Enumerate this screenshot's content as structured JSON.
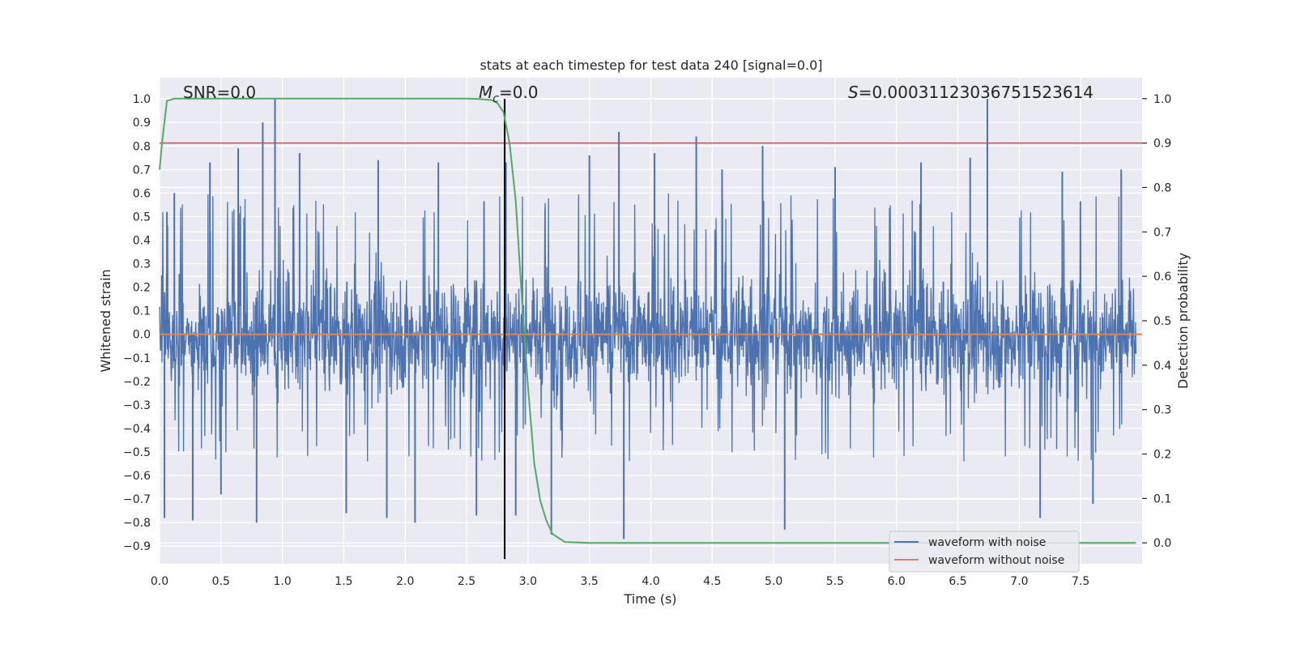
{
  "chart_data": {
    "type": "line",
    "title": "stats at each timestep for test data 240 [signal=0.0]",
    "xlabel": "Time (s)",
    "ylabel": "Whitened strain",
    "y2label": "Detection probability",
    "xlim": [
      0.0,
      8.0
    ],
    "ylim": [
      -0.975,
      1.09
    ],
    "y2lim": [
      -0.047,
      1.047
    ],
    "xticks": [
      0.0,
      0.5,
      1.0,
      1.5,
      2.0,
      2.5,
      3.0,
      3.5,
      4.0,
      4.5,
      5.0,
      5.5,
      6.0,
      6.5,
      7.0,
      7.5
    ],
    "xtick_labels": [
      "0.0",
      "0.5",
      "1.0",
      "1.5",
      "2.0",
      "2.5",
      "3.0",
      "3.5",
      "4.0",
      "4.5",
      "5.0",
      "5.5",
      "6.0",
      "6.5",
      "7.0",
      "7.5"
    ],
    "yticks": [
      1.0,
      0.9,
      0.8,
      0.7,
      0.6,
      0.5,
      0.4,
      0.3,
      0.2,
      0.1,
      0.0,
      -0.1,
      -0.2,
      -0.3,
      -0.4,
      -0.5,
      -0.6,
      -0.7,
      -0.8,
      -0.9
    ],
    "ytick_labels": [
      "1.0",
      "0.9",
      "0.8",
      "0.7",
      "0.6",
      "0.5",
      "0.4",
      "0.3",
      "0.2",
      "0.1",
      "0.0",
      "−0.1",
      "−0.2",
      "−0.3",
      "−0.4",
      "−0.5",
      "−0.6",
      "−0.7",
      "−0.8",
      "−0.9"
    ],
    "y2ticks": [
      1.0,
      0.9,
      0.8,
      0.7,
      0.6,
      0.5,
      0.4,
      0.3,
      0.2,
      0.1,
      0.0
    ],
    "y2tick_labels": [
      "1.0",
      "0.9",
      "0.8",
      "0.7",
      "0.6",
      "0.5",
      "0.4",
      "0.3",
      "0.2",
      "0.1",
      "0.0"
    ],
    "grid": true,
    "legend_position": "bottom-right",
    "annotations": [
      {
        "id": "snr",
        "text": "SNR=0.0"
      },
      {
        "id": "mc",
        "text_symbol": "M",
        "text_sub": "c",
        "text_rest": "=0.0"
      },
      {
        "id": "s",
        "text_symbol": "S",
        "text_rest": "=0.0003112303675152361​4"
      }
    ],
    "series": [
      {
        "name": "waveform with noise",
        "color": "#4c72b0",
        "axis": "left",
        "envelope_typical": [
          -0.45,
          0.5
        ],
        "spikes": [
          {
            "x": 0.04,
            "y": -0.78
          },
          {
            "x": 0.06,
            "y": 0.52
          },
          {
            "x": 0.12,
            "y": 0.6
          },
          {
            "x": 0.27,
            "y": -0.79
          },
          {
            "x": 0.41,
            "y": 0.73
          },
          {
            "x": 0.5,
            "y": -0.68
          },
          {
            "x": 0.64,
            "y": 0.79
          },
          {
            "x": 0.79,
            "y": -0.8
          },
          {
            "x": 0.84,
            "y": 0.9
          },
          {
            "x": 0.94,
            "y": 1.0
          },
          {
            "x": 1.14,
            "y": 0.77
          },
          {
            "x": 1.52,
            "y": -0.76
          },
          {
            "x": 1.78,
            "y": 0.74
          },
          {
            "x": 1.85,
            "y": -0.78
          },
          {
            "x": 2.08,
            "y": -0.8
          },
          {
            "x": 2.27,
            "y": 0.73
          },
          {
            "x": 2.58,
            "y": -0.77
          },
          {
            "x": 2.82,
            "y": 0.73
          },
          {
            "x": 2.9,
            "y": -0.77
          },
          {
            "x": 3.19,
            "y": -0.85
          },
          {
            "x": 3.5,
            "y": 0.76
          },
          {
            "x": 3.74,
            "y": 0.86
          },
          {
            "x": 3.78,
            "y": -0.87
          },
          {
            "x": 4.03,
            "y": 0.77
          },
          {
            "x": 4.37,
            "y": 0.84
          },
          {
            "x": 4.58,
            "y": 0.7
          },
          {
            "x": 4.91,
            "y": 0.8
          },
          {
            "x": 5.09,
            "y": -0.83
          },
          {
            "x": 5.5,
            "y": 0.71
          },
          {
            "x": 6.2,
            "y": 0.73
          },
          {
            "x": 6.6,
            "y": 0.75
          },
          {
            "x": 6.74,
            "y": 1.0
          },
          {
            "x": 7.17,
            "y": -0.78
          },
          {
            "x": 7.35,
            "y": 0.69
          },
          {
            "x": 7.6,
            "y": -0.72
          },
          {
            "x": 7.83,
            "y": 0.7
          }
        ]
      },
      {
        "name": "waveform without noise",
        "color": "#dd8452",
        "axis": "left",
        "x": [
          0.0,
          8.0
        ],
        "y": [
          0.0,
          0.0
        ]
      },
      {
        "color": "#55a868",
        "axis": "right",
        "x": [
          0.0,
          0.02,
          0.06,
          0.12,
          0.2,
          0.5,
          1.0,
          1.5,
          2.0,
          2.5,
          2.6,
          2.7,
          2.75,
          2.8,
          2.85,
          2.9,
          2.95,
          3.0,
          3.05,
          3.1,
          3.15,
          3.2,
          3.3,
          3.5,
          4.0,
          5.0,
          6.0,
          7.0,
          7.95
        ],
        "y": [
          0.84,
          0.9,
          0.995,
          1.0,
          1.0,
          1.0,
          1.0,
          1.0,
          1.0,
          1.0,
          0.999,
          0.997,
          0.99,
          0.97,
          0.9,
          0.77,
          0.55,
          0.35,
          0.18,
          0.095,
          0.05,
          0.02,
          0.002,
          0.0,
          0.0,
          0.0,
          0.0,
          0.0,
          0.0
        ]
      }
    ],
    "hlines": [
      {
        "axis": "right",
        "y": 0.9,
        "color": "#c44e52"
      }
    ],
    "vlines": [
      {
        "x": 2.81,
        "axis": "left",
        "y_from": -0.955,
        "y_to": 1.0,
        "color": "#000000"
      }
    ]
  }
}
